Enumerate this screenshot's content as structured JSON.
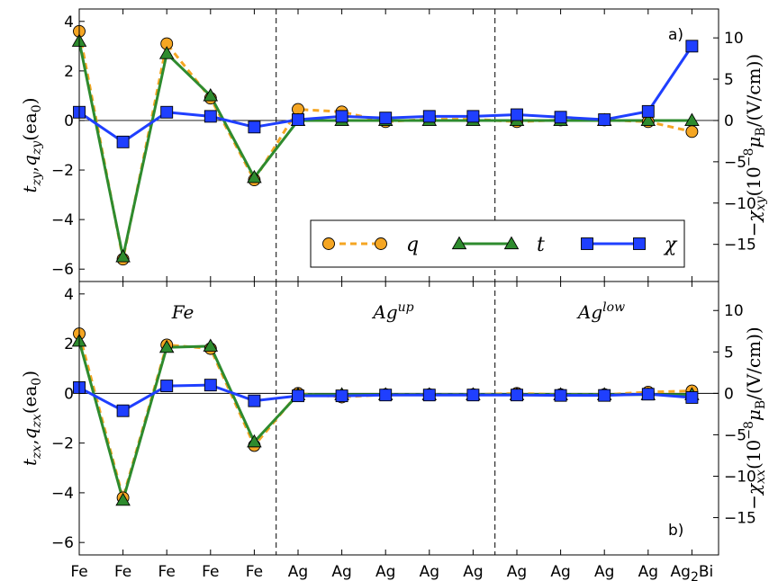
{
  "chart_data": {
    "type": "line",
    "categories": [
      "Fe",
      "Fe",
      "Fe",
      "Fe",
      "Fe",
      "Ag",
      "Ag",
      "Ag",
      "Ag",
      "Ag",
      "Ag",
      "Ag",
      "Ag",
      "Ag",
      "Ag2Bi"
    ],
    "regions": [
      "Fe",
      "Ag^up",
      "Ag^low"
    ],
    "legend": {
      "placement": "lower-right",
      "entries": [
        "q",
        "t",
        "χ"
      ]
    },
    "colors": {
      "q": "#f5a623",
      "t": "#2e8b2e",
      "chi": "#1f3fff"
    },
    "panels": [
      {
        "tag": "a)",
        "ylabel": "t_zy, q_zy (ea0)",
        "y2label": "−χ_xy (10^−8 μB/(V/cm))",
        "ylim": [
          -6.5,
          4.5
        ],
        "y2lim": [
          -19.5,
          13.5
        ],
        "yticks": [
          -6,
          -4,
          -2,
          0,
          2,
          4
        ],
        "y2ticks": [
          -15,
          -10,
          -5,
          0,
          5,
          10
        ],
        "grid": false,
        "series": [
          {
            "name": "q",
            "axis": "left",
            "values": [
              3.6,
              -5.6,
              3.1,
              0.9,
              -2.4,
              0.45,
              0.35,
              -0.05,
              0.05,
              0.05,
              -0.05,
              0.02,
              0.02,
              -0.05,
              -0.45
            ]
          },
          {
            "name": "t",
            "axis": "left",
            "values": [
              3.2,
              -5.5,
              2.7,
              1.0,
              -2.3,
              0.0,
              0.0,
              0.0,
              0.0,
              0.0,
              0.0,
              0.0,
              0.0,
              0.0,
              0.0
            ]
          },
          {
            "name": "χ",
            "axis": "right",
            "values": [
              1.0,
              -2.6,
              1.0,
              0.5,
              -0.8,
              0.1,
              0.5,
              0.3,
              0.5,
              0.5,
              0.7,
              0.4,
              0.1,
              1.1,
              9.0
            ]
          }
        ]
      },
      {
        "tag": "b)",
        "ylabel": "t_zx, q_zx (ea0)",
        "y2label": "−χ_xx (10^−8 μB/(V/cm))",
        "ylim": [
          -6.5,
          4.5
        ],
        "y2lim": [
          -19.5,
          13.5
        ],
        "yticks": [
          -6,
          -4,
          -2,
          0,
          2,
          4
        ],
        "y2ticks": [
          -15,
          -10,
          -5,
          0,
          5,
          10
        ],
        "grid": false,
        "series": [
          {
            "name": "q",
            "axis": "left",
            "values": [
              2.4,
              -4.2,
              1.95,
              1.8,
              -2.1,
              0.0,
              -0.15,
              -0.05,
              -0.05,
              -0.05,
              0.0,
              -0.05,
              -0.05,
              0.05,
              0.1
            ]
          },
          {
            "name": "t",
            "axis": "left",
            "values": [
              2.1,
              -4.3,
              1.85,
              1.9,
              -1.95,
              -0.05,
              -0.05,
              -0.05,
              -0.05,
              -0.05,
              -0.05,
              -0.05,
              -0.05,
              -0.05,
              -0.05
            ]
          },
          {
            "name": "χ",
            "axis": "right",
            "values": [
              0.7,
              -2.1,
              0.9,
              1.0,
              -0.9,
              -0.3,
              -0.3,
              -0.2,
              -0.2,
              -0.2,
              -0.2,
              -0.25,
              -0.25,
              -0.1,
              -0.5
            ]
          }
        ]
      }
    ]
  }
}
